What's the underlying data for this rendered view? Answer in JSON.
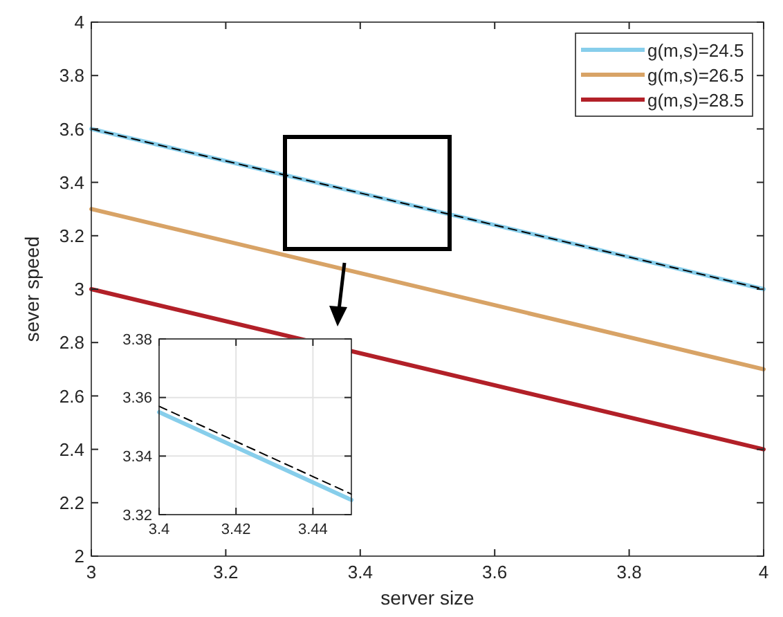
{
  "chart_data": [
    {
      "type": "line",
      "xlabel": "server size",
      "ylabel": "sever speed",
      "x": [
        3,
        4
      ],
      "xlim": [
        3,
        4
      ],
      "ylim": [
        2,
        4
      ],
      "xticks": [
        3,
        3.2,
        3.4,
        3.6,
        3.8,
        4
      ],
      "yticks": [
        2,
        2.2,
        2.4,
        2.6,
        2.8,
        3,
        3.2,
        3.4,
        3.6,
        3.8,
        4
      ],
      "legend": "top right",
      "grid": false,
      "series": [
        {
          "name": "g(m,s)=24.5",
          "color": "#87ceeb",
          "values": [
            3.6,
            3.0
          ]
        },
        {
          "name": "g(m,s)=26.5",
          "color": "#d8a366",
          "values": [
            3.3,
            2.7
          ]
        },
        {
          "name": "g(m,s)=28.5",
          "color": "#b22028",
          "values": [
            3.0,
            2.4
          ]
        },
        {
          "color": "#000000",
          "values": [
            3.6,
            3.0
          ],
          "line_style": "dashed"
        }
      ]
    },
    {
      "type": "line",
      "x": [
        3.4,
        3.45
      ],
      "xlim": [
        3.4,
        3.45
      ],
      "ylim": [
        3.32,
        3.38
      ],
      "xticks": [
        3.4,
        3.42,
        3.44
      ],
      "yticks": [
        3.32,
        3.34,
        3.36,
        3.38
      ],
      "grid": true,
      "series": [
        {
          "color": "#87ceeb",
          "values": [
            3.355,
            3.325
          ]
        },
        {
          "color": "#000000",
          "values": [
            3.357,
            3.327
          ],
          "line_style": "dashed"
        }
      ]
    }
  ]
}
